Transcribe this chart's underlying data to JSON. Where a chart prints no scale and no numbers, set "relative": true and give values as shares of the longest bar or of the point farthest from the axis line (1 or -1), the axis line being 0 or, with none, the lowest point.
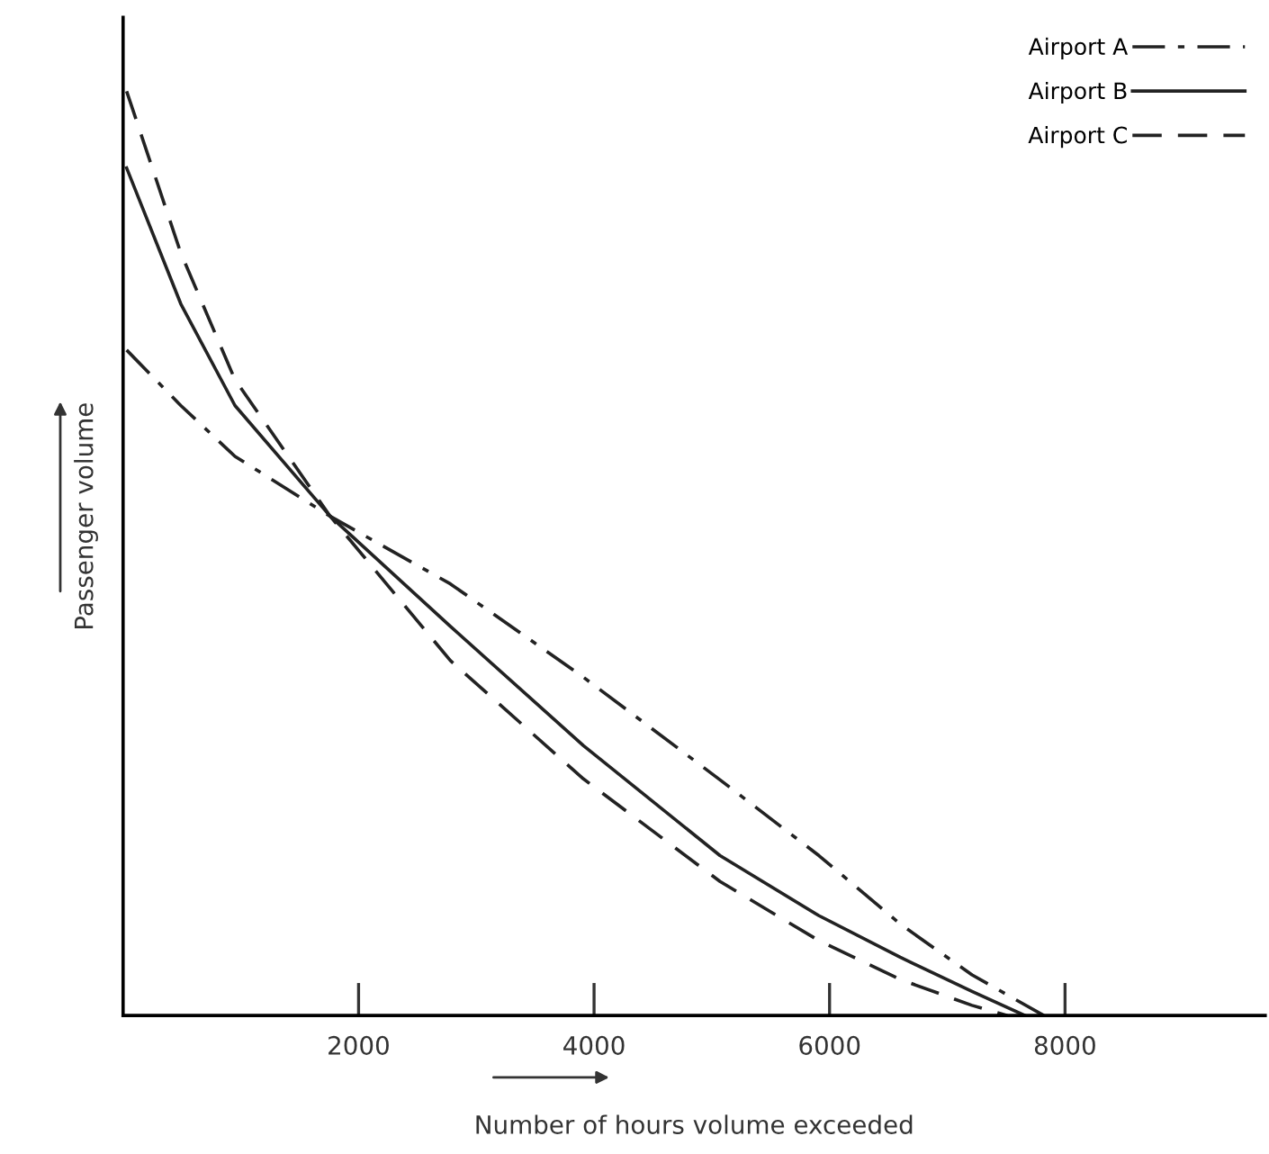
{
  "chart_data": {
    "type": "line",
    "xlabel": "Number of hours volume exceeded",
    "ylabel": "Passenger volume",
    "relative": true,
    "xlim": [
      0,
      9700
    ],
    "xticks": [
      2000,
      4000,
      6000,
      8000
    ],
    "tick_labels": "x",
    "grid": false,
    "legend": "top right",
    "marker": "none",
    "series": [
      {
        "name": "Airport A",
        "color": "#222222",
        "line_style": "dashdot",
        "x": [
          30,
          490,
          950,
          1760,
          2780,
          3910,
          5070,
          5910,
          6600,
          7210,
          7820
        ],
        "values": [
          0.72,
          0.66,
          0.605,
          0.54,
          0.467,
          0.366,
          0.255,
          0.173,
          0.099,
          0.044,
          0
        ]
      },
      {
        "name": "Airport B",
        "color": "#222222",
        "line_style": "solid",
        "x": [
          30,
          490,
          950,
          1760,
          2780,
          3910,
          5070,
          5910,
          6600,
          7210,
          7660
        ],
        "values": [
          0.917,
          0.77,
          0.66,
          0.54,
          0.421,
          0.292,
          0.173,
          0.108,
          0.063,
          0.026,
          0
        ]
      },
      {
        "name": "Airport C",
        "color": "#222222",
        "line_style": "dashed",
        "x": [
          30,
          490,
          950,
          1760,
          2780,
          3910,
          5070,
          5910,
          6600,
          7210,
          7510
        ],
        "values": [
          1,
          0.825,
          0.688,
          0.54,
          0.384,
          0.256,
          0.145,
          0.081,
          0.039,
          0.011,
          0
        ]
      }
    ]
  }
}
